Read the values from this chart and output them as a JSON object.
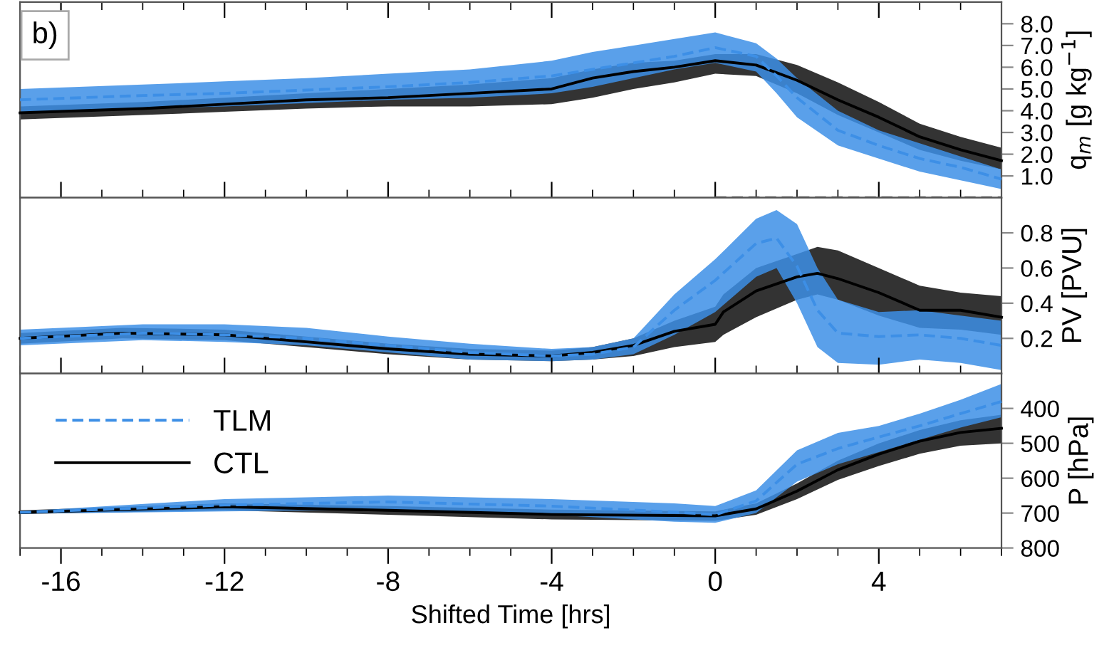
{
  "chart_data": [
    {
      "type": "line",
      "xlim": [
        -17,
        7
      ],
      "ylim": [
        0,
        9
      ],
      "xticks": [
        -16,
        -12,
        -8,
        -4,
        0,
        4
      ],
      "yticks": [
        {
          "value": 1,
          "label": "1.0"
        },
        {
          "value": 2,
          "label": "2.0"
        },
        {
          "value": 3,
          "label": "3.0"
        },
        {
          "value": 4,
          "label": "4.0"
        },
        {
          "value": 5,
          "label": "5.0"
        },
        {
          "value": 6,
          "label": "6.0"
        },
        {
          "value": 7,
          "label": "7.0"
        },
        {
          "value": 8,
          "label": "8.0"
        }
      ],
      "ylabel": "q$_{m}$ [g kg$^{−1}$]",
      "tick_labels": "y",
      "grid": false,
      "legend": false,
      "annotations": [
        "b)"
      ],
      "series": [
        {
          "color": "#000000",
          "line_style": "solid",
          "x": [
            -17,
            -14,
            -12,
            -10,
            -8,
            -6,
            -4,
            -3,
            -2,
            -1,
            0,
            1,
            2,
            3,
            4,
            5,
            6,
            7
          ],
          "values": [
            3.9,
            4.1,
            4.3,
            4.5,
            4.6,
            4.8,
            5.0,
            5.5,
            5.8,
            6.0,
            6.3,
            6.1,
            5.4,
            4.5,
            3.7,
            2.8,
            2.2,
            1.7
          ],
          "lower": [
            3.6,
            3.8,
            3.95,
            4.1,
            4.2,
            4.2,
            4.3,
            4.6,
            5.0,
            5.3,
            5.7,
            5.6,
            4.8,
            3.8,
            3.0,
            2.2,
            1.7,
            1.3
          ],
          "upper": [
            4.2,
            4.4,
            4.6,
            4.8,
            5.0,
            5.2,
            5.5,
            5.9,
            6.2,
            6.3,
            6.6,
            6.6,
            6.1,
            5.3,
            4.4,
            3.4,
            2.8,
            2.3
          ]
        },
        {
          "color": "#3d8fe6",
          "line_style": "dashed",
          "x": [
            -17,
            -14,
            -12,
            -10,
            -8,
            -6,
            -4,
            -3,
            -2,
            -1,
            0,
            1,
            1.5,
            2,
            3,
            4,
            5,
            6,
            7
          ],
          "values": [
            4.5,
            4.7,
            4.8,
            4.95,
            5.1,
            5.3,
            5.6,
            5.9,
            6.2,
            6.5,
            6.9,
            6.5,
            5.6,
            4.6,
            3.1,
            2.4,
            1.8,
            1.4,
            0.85
          ],
          "lower": [
            3.9,
            4.1,
            4.2,
            4.35,
            4.5,
            4.6,
            4.8,
            5.1,
            5.5,
            5.9,
            6.2,
            5.8,
            4.8,
            3.7,
            2.4,
            1.8,
            1.2,
            0.8,
            0.4
          ],
          "upper": [
            5.0,
            5.2,
            5.35,
            5.5,
            5.7,
            5.9,
            6.3,
            6.7,
            7.0,
            7.3,
            7.6,
            7.1,
            6.4,
            5.5,
            4.0,
            3.1,
            2.5,
            1.9,
            1.3
          ]
        },
        {
          "color": "#555555",
          "line_style": "dashed",
          "x": [
            0,
            7
          ],
          "values": [
            0,
            0
          ]
        }
      ]
    },
    {
      "type": "line",
      "xlim": [
        -17,
        7
      ],
      "ylim": [
        0,
        1
      ],
      "xticks": [
        -16,
        -12,
        -8,
        -4,
        0,
        4
      ],
      "yticks": [
        0.2,
        0.4,
        0.6,
        0.8
      ],
      "ylabel": "PV [PVU]",
      "tick_labels": "y",
      "grid": false,
      "legend": false,
      "series": [
        {
          "color": "#000000",
          "line_style": "solid",
          "x": [
            -17,
            -14.5,
            -12,
            -10,
            -8,
            -6,
            -4,
            -3,
            -2,
            -1,
            0,
            0.2,
            1,
            2,
            2.5,
            3,
            4,
            5,
            6,
            7
          ],
          "values": [
            0.2,
            0.23,
            0.22,
            0.18,
            0.14,
            0.11,
            0.1,
            0.12,
            0.16,
            0.24,
            0.28,
            0.35,
            0.47,
            0.55,
            0.57,
            0.54,
            0.46,
            0.36,
            0.36,
            0.32
          ],
          "lower": [
            0.17,
            0.2,
            0.19,
            0.15,
            0.11,
            0.08,
            0.07,
            0.08,
            0.1,
            0.15,
            0.18,
            0.22,
            0.32,
            0.42,
            0.45,
            0.42,
            0.33,
            0.26,
            0.25,
            0.22
          ],
          "upper": [
            0.23,
            0.26,
            0.25,
            0.21,
            0.17,
            0.14,
            0.13,
            0.15,
            0.2,
            0.3,
            0.38,
            0.45,
            0.6,
            0.68,
            0.72,
            0.7,
            0.6,
            0.5,
            0.46,
            0.44
          ]
        },
        {
          "color": "#3d8fe6",
          "line_style": "dashed",
          "x": [
            -17,
            -14,
            -12,
            -10,
            -8,
            -6,
            -4,
            -3,
            -2,
            -1,
            0,
            1,
            1.5,
            2,
            2.5,
            3,
            4,
            5,
            6,
            7
          ],
          "values": [
            0.2,
            0.23,
            0.22,
            0.2,
            0.16,
            0.12,
            0.1,
            0.11,
            0.15,
            0.36,
            0.53,
            0.74,
            0.77,
            0.61,
            0.36,
            0.23,
            0.21,
            0.22,
            0.2,
            0.16
          ],
          "lower": [
            0.16,
            0.19,
            0.18,
            0.16,
            0.12,
            0.08,
            0.07,
            0.08,
            0.11,
            0.22,
            0.35,
            0.55,
            0.6,
            0.4,
            0.15,
            0.06,
            0.05,
            0.08,
            0.06,
            0.02
          ],
          "upper": [
            0.25,
            0.28,
            0.28,
            0.26,
            0.21,
            0.17,
            0.14,
            0.15,
            0.2,
            0.45,
            0.65,
            0.88,
            0.93,
            0.85,
            0.6,
            0.42,
            0.35,
            0.36,
            0.33,
            0.3
          ]
        }
      ]
    },
    {
      "type": "line",
      "xlim": [
        -17,
        7
      ],
      "ylim": [
        800,
        300
      ],
      "xticks": [
        -16,
        -12,
        -8,
        -4,
        0,
        4
      ],
      "yticks": [
        400,
        500,
        600,
        700,
        800
      ],
      "ylabel": "P [hPa]",
      "xlabel": "Shifted Time [hrs]",
      "grid": false,
      "legend": "top left",
      "series": [
        {
          "name": "CTL",
          "color": "#000000",
          "line_style": "solid",
          "x": [
            -17,
            -12,
            -8,
            -4,
            0,
            1,
            2,
            3,
            4,
            5,
            6,
            7
          ],
          "values": [
            698,
            682,
            692,
            704,
            708,
            688,
            637,
            576,
            531,
            494,
            469,
            457
          ],
          "lower": [
            692,
            672,
            680,
            690,
            695,
            672,
            615,
            550,
            500,
            462,
            434,
            418
          ],
          "upper": [
            703,
            692,
            705,
            718,
            722,
            705,
            660,
            605,
            565,
            530,
            507,
            500
          ]
        },
        {
          "name": "TLM",
          "color": "#3d8fe6",
          "line_style": "dashed",
          "x": [
            -17,
            -12,
            -8,
            -4,
            -1,
            0,
            1,
            2,
            3,
            4,
            5,
            6,
            7
          ],
          "values": [
            698,
            677,
            668,
            680,
            697,
            705,
            665,
            560,
            515,
            482,
            450,
            415,
            380
          ],
          "lower": [
            695,
            660,
            650,
            660,
            672,
            680,
            635,
            520,
            470,
            450,
            415,
            375,
            330
          ],
          "upper": [
            702,
            695,
            690,
            705,
            725,
            728,
            700,
            610,
            560,
            525,
            490,
            455,
            425
          ]
        }
      ]
    }
  ]
}
